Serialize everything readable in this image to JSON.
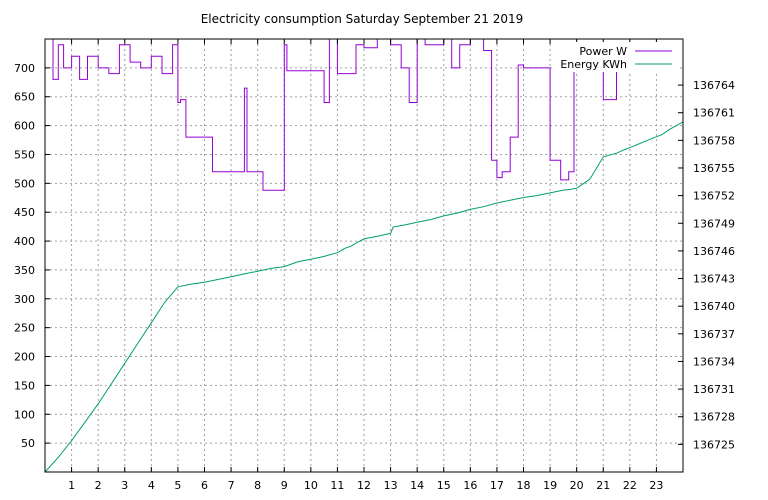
{
  "chart_data": {
    "type": "line",
    "title": "Electricity consumption Saturday September 21 2019",
    "xlabel": "",
    "ylabel": "",
    "y2label": "",
    "xlim": [
      0,
      24
    ],
    "ylim": [
      0,
      750
    ],
    "y2lim": [
      136722,
      136769
    ],
    "x_ticks": [
      1,
      2,
      3,
      4,
      5,
      6,
      7,
      8,
      9,
      10,
      11,
      12,
      13,
      14,
      15,
      16,
      17,
      18,
      19,
      20,
      21,
      22,
      23
    ],
    "y_ticks": [
      50,
      100,
      150,
      200,
      250,
      300,
      350,
      400,
      450,
      500,
      550,
      600,
      650,
      700
    ],
    "y2_ticks": [
      136725,
      136728,
      136731,
      136734,
      136737,
      136740,
      136743,
      136746,
      136749,
      136752,
      136755,
      136758,
      136761,
      136764
    ],
    "grid": true,
    "legend_position": "top-right",
    "series": [
      {
        "name": "Power W",
        "axis": "y",
        "color": "#9400d3",
        "step": true,
        "x": [
          0.0,
          0.3,
          0.3,
          0.5,
          0.5,
          0.7,
          0.7,
          1.0,
          1.0,
          1.3,
          1.3,
          1.6,
          1.6,
          2.0,
          2.0,
          2.4,
          2.4,
          2.8,
          2.8,
          3.2,
          3.2,
          3.6,
          3.6,
          4.0,
          4.0,
          4.4,
          4.4,
          4.8,
          4.8,
          5.0,
          5.0,
          5.1,
          5.1,
          5.3,
          5.3,
          6.3,
          6.3,
          7.0,
          7.0,
          7.5,
          7.5,
          7.6,
          7.6,
          8.2,
          8.2,
          9.0,
          9.0,
          9.1,
          9.1,
          9.7,
          9.7,
          10.5,
          10.5,
          10.7,
          10.7,
          11.0,
          11.0,
          11.7,
          11.7,
          12.0,
          12.0,
          12.5,
          12.5,
          13.0,
          13.0,
          13.4,
          13.4,
          13.7,
          13.7,
          14.0,
          14.0,
          14.3,
          14.3,
          15.0,
          15.0,
          15.3,
          15.3,
          15.6,
          15.6,
          16.0,
          16.0,
          16.5,
          16.5,
          16.8,
          16.8,
          17.0,
          17.0,
          17.2,
          17.2,
          17.5,
          17.5,
          17.8,
          17.8,
          18.0,
          18.0,
          18.5,
          18.5,
          19.0,
          19.0,
          19.4,
          19.4,
          19.7,
          19.7,
          19.9,
          19.9,
          20.5,
          20.5,
          21.0,
          21.0,
          21.5,
          21.5,
          22.0,
          22.0,
          23.0,
          23.0,
          23.5,
          23.5
        ],
        "y": [
          750,
          750,
          680,
          680,
          740,
          740,
          700,
          700,
          720,
          720,
          680,
          680,
          720,
          720,
          700,
          700,
          690,
          690,
          740,
          740,
          710,
          710,
          700,
          700,
          720,
          720,
          690,
          690,
          740,
          740,
          640,
          640,
          645,
          645,
          580,
          580,
          520,
          520,
          520,
          520,
          665,
          665,
          520,
          520,
          488,
          488,
          740,
          740,
          695,
          695,
          695,
          695,
          640,
          640,
          750,
          750,
          690,
          690,
          740,
          740,
          735,
          735,
          750,
          750,
          740,
          740,
          700,
          700,
          640,
          640,
          750,
          750,
          740,
          740,
          750,
          750,
          700,
          700,
          740,
          740,
          750,
          750,
          730,
          730,
          540,
          540,
          510,
          510,
          520,
          520,
          580,
          580,
          705,
          705,
          700,
          700,
          700,
          700,
          540,
          540,
          506,
          506,
          520,
          520,
          740,
          740,
          740,
          740,
          645,
          645,
          740,
          740,
          740,
          740,
          735,
          735,
          740
        ]
      },
      {
        "name": "Energy KWh",
        "axis": "y2",
        "color": "#009e73",
        "step": false,
        "x": [
          0.0,
          0.5,
          1.0,
          1.5,
          2.0,
          2.5,
          3.0,
          3.5,
          4.0,
          4.5,
          5.0,
          5.5,
          6.0,
          6.5,
          7.0,
          7.5,
          8.0,
          8.5,
          9.0,
          9.5,
          10.0,
          10.5,
          11.0,
          11.3,
          11.5,
          11.8,
          12.0,
          12.5,
          13.0,
          13.1,
          13.5,
          14.0,
          14.5,
          15.0,
          15.5,
          16.0,
          16.5,
          17.0,
          17.5,
          18.0,
          18.5,
          19.0,
          19.5,
          19.8,
          20.0,
          20.2,
          20.5,
          21.0,
          21.5,
          21.8,
          22.0,
          22.5,
          23.0,
          23.2,
          23.5,
          24.0
        ],
        "y": [
          136722.0,
          136723.6,
          136725.4,
          136727.4,
          136729.4,
          136731.6,
          136733.8,
          136736.0,
          136738.2,
          136740.4,
          136742.1,
          136742.4,
          136742.6,
          136742.9,
          136743.2,
          136743.5,
          136743.8,
          136744.1,
          136744.3,
          136744.8,
          136745.1,
          136745.4,
          136745.8,
          136746.3,
          136746.5,
          136747.0,
          136747.3,
          136747.6,
          136747.9,
          136748.6,
          136748.8,
          136749.1,
          136749.4,
          136749.8,
          136750.1,
          136750.5,
          136750.8,
          136751.2,
          136751.5,
          136751.8,
          136752.0,
          136752.3,
          136752.6,
          136752.7,
          136752.8,
          136753.2,
          136753.8,
          136756.2,
          136756.6,
          136757.0,
          136757.2,
          136757.8,
          136758.4,
          136758.6,
          136759.2,
          136760.0
        ]
      }
    ]
  }
}
